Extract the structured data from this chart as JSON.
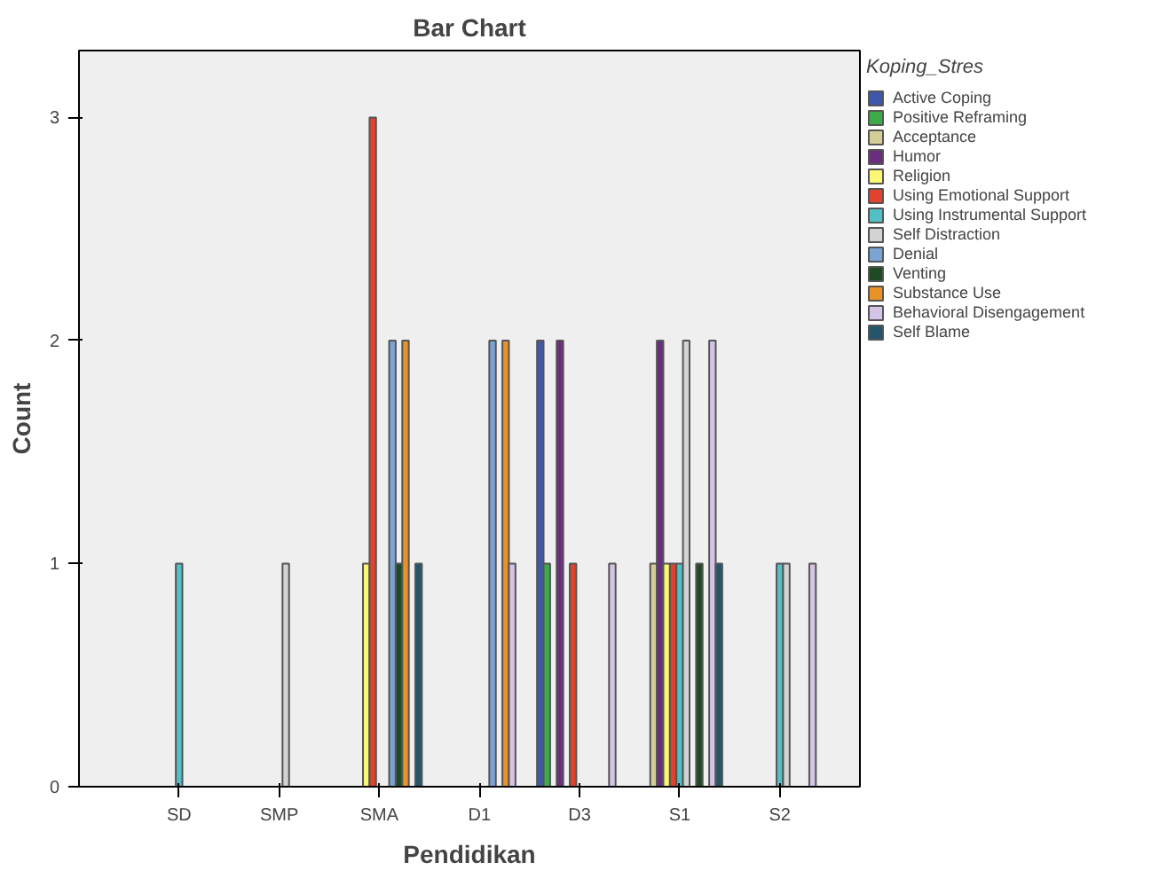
{
  "chart_data": {
    "type": "bar",
    "title": "Bar Chart",
    "xlabel": "Pendidikan",
    "ylabel": "Count",
    "legend_title": "Koping_Stres",
    "legend": "right",
    "grid": false,
    "categories": [
      "SD",
      "SMP",
      "SMA",
      "D1",
      "D3",
      "S1",
      "S2"
    ],
    "ylim": [
      0,
      3.3
    ],
    "yticks": [
      0,
      1,
      2,
      3
    ],
    "series": [
      {
        "name": "Active Coping",
        "color": "#3e58ac",
        "values": [
          null,
          null,
          null,
          null,
          2,
          null,
          null
        ]
      },
      {
        "name": "Positive Reframing",
        "color": "#3eab48",
        "values": [
          null,
          null,
          null,
          null,
          1,
          null,
          null
        ]
      },
      {
        "name": "Acceptance",
        "color": "#d4ce96",
        "values": [
          null,
          null,
          null,
          null,
          null,
          1,
          null
        ]
      },
      {
        "name": "Humor",
        "color": "#6b2d7f",
        "values": [
          null,
          null,
          null,
          null,
          2,
          2,
          null
        ]
      },
      {
        "name": "Religion",
        "color": "#fbf873",
        "values": [
          null,
          null,
          1,
          null,
          null,
          1,
          null
        ]
      },
      {
        "name": "Using Emotional Support",
        "color": "#e2432f",
        "values": [
          null,
          null,
          3,
          null,
          1,
          1,
          null
        ]
      },
      {
        "name": "Using Instrumental Support",
        "color": "#53c0c5",
        "values": [
          1,
          null,
          null,
          null,
          null,
          1,
          1
        ]
      },
      {
        "name": "Self Distraction",
        "color": "#d3d3d3",
        "values": [
          null,
          1,
          null,
          null,
          null,
          2,
          1
        ]
      },
      {
        "name": "Denial",
        "color": "#79a4d4",
        "values": [
          null,
          null,
          2,
          2,
          null,
          null,
          null
        ]
      },
      {
        "name": "Venting",
        "color": "#1f4b23",
        "values": [
          null,
          null,
          1,
          null,
          null,
          1,
          null
        ]
      },
      {
        "name": "Substance Use",
        "color": "#e99225",
        "values": [
          null,
          null,
          2,
          2,
          null,
          null,
          null
        ]
      },
      {
        "name": "Behavioral Disengagement",
        "color": "#d6c3e8",
        "values": [
          null,
          null,
          null,
          1,
          1,
          2,
          1
        ]
      },
      {
        "name": "Self Blame",
        "color": "#24566b",
        "values": [
          null,
          null,
          1,
          null,
          null,
          1,
          null
        ]
      }
    ]
  }
}
